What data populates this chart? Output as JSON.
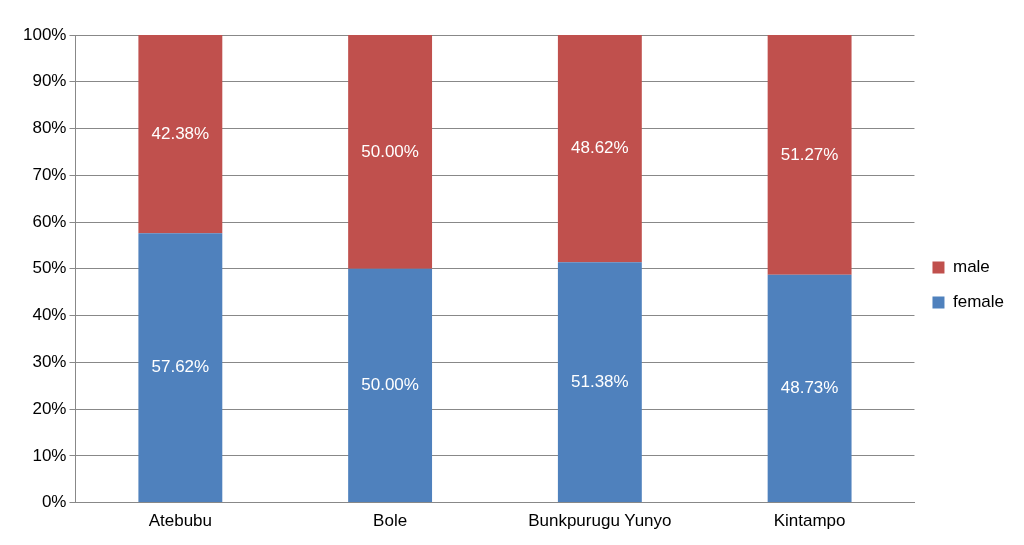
{
  "chart_data": {
    "type": "bar",
    "stacked": true,
    "categories": [
      "Atebubu",
      "Bole",
      "Bunkpurugu Yunyo",
      "Kintampo"
    ],
    "series": [
      {
        "name": "female",
        "color": "#4f81bd",
        "values": [
          57.62,
          50.0,
          51.38,
          48.73
        ],
        "value_labels": [
          "57.62%",
          "50.00%",
          "51.38%",
          "48.73%"
        ]
      },
      {
        "name": "male",
        "color": "#c0504d",
        "values": [
          42.38,
          50.0,
          48.62,
          51.27
        ],
        "value_labels": [
          "42.38%",
          "50.00%",
          "48.62%",
          "51.27%"
        ]
      }
    ],
    "ylim": [
      0,
      100
    ],
    "yticks": [
      {
        "value": 0,
        "label": "0%"
      },
      {
        "value": 10,
        "label": "10%"
      },
      {
        "value": 20,
        "label": "20%"
      },
      {
        "value": 30,
        "label": "30%"
      },
      {
        "value": 40,
        "label": "40%"
      },
      {
        "value": 50,
        "label": "50%"
      },
      {
        "value": 60,
        "label": "60%"
      },
      {
        "value": 70,
        "label": "70%"
      },
      {
        "value": 80,
        "label": "80%"
      },
      {
        "value": 90,
        "label": "90%"
      },
      {
        "value": 100,
        "label": "100%"
      }
    ],
    "grid": "y",
    "legend": "right"
  }
}
